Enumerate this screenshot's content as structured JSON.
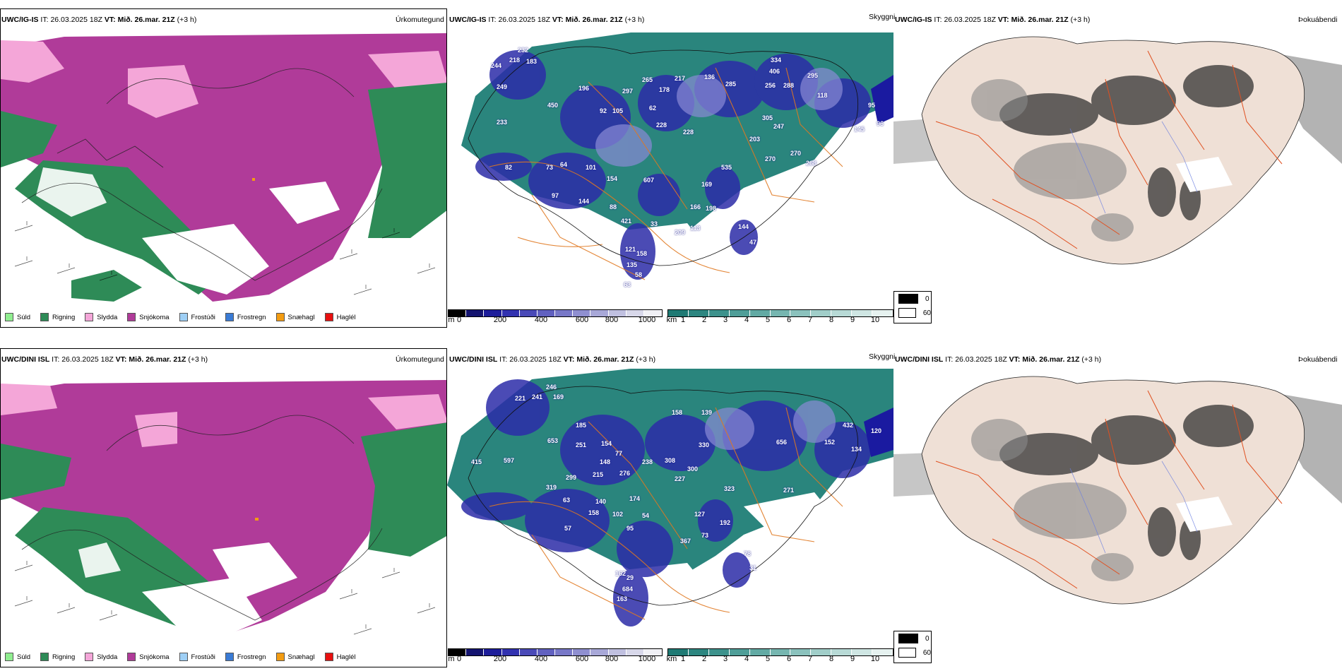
{
  "rows": [
    {
      "model": "UWC/IG-IS",
      "it_label": "IT:",
      "it_value": "26.03.2025 18Z",
      "vt_label": "VT:",
      "vt_value": "Mið. 26.mar. 21Z",
      "lead": "(+3 h)",
      "title_precip": "Úrkomutegund",
      "title_vis": "Skyggni",
      "title_fog": "Þokuábendi",
      "vis_numbers": [
        "232",
        "218",
        "183",
        "244",
        "249",
        "196",
        "450",
        "233",
        "297",
        "265",
        "178",
        "217",
        "136",
        "285",
        "406",
        "334",
        "256",
        "288",
        "295",
        "118",
        "95",
        "92",
        "105",
        "62",
        "228",
        "228",
        "247",
        "203",
        "305",
        "270",
        "145",
        "535",
        "82",
        "64",
        "101",
        "154",
        "607",
        "97",
        "144",
        "88",
        "421",
        "33",
        "169",
        "166",
        "198",
        "144",
        "47",
        "121",
        "158",
        "135",
        "58",
        "63",
        "270",
        "268",
        "209",
        "113",
        "73",
        "96"
      ]
    },
    {
      "model": "UWC/DINI ISL",
      "it_label": "IT:",
      "it_value": "26.03.2025 18Z",
      "vt_label": "VT:",
      "vt_value": "Mið. 26.mar. 21Z",
      "lead": "(+3 h)",
      "title_precip": "Úrkomutegund",
      "title_vis": "Skyggni",
      "title_fog": "Þokuábendi",
      "vis_numbers": [
        "246",
        "221",
        "241",
        "169",
        "185",
        "653",
        "597",
        "415",
        "251",
        "154",
        "77",
        "158",
        "139",
        "656",
        "152",
        "134",
        "120",
        "330",
        "148",
        "238",
        "308",
        "300",
        "227",
        "215",
        "276",
        "174",
        "140",
        "158",
        "102",
        "95",
        "57",
        "54",
        "127",
        "192",
        "323",
        "271",
        "73",
        "367",
        "78",
        "31",
        "63",
        "162",
        "29",
        "684",
        "163",
        "319",
        "299",
        "432"
      ]
    }
  ],
  "precip_legend": [
    {
      "label": "Súld",
      "color": "#90ee90"
    },
    {
      "label": "Rigning",
      "color": "#2e8b57"
    },
    {
      "label": "Slydda",
      "color": "#f4a6d8"
    },
    {
      "label": "Snjókoma",
      "color": "#b03b99"
    },
    {
      "label": "Frostúði",
      "color": "#9ecff5"
    },
    {
      "label": "Frostregn",
      "color": "#3a7bd5"
    },
    {
      "label": "Snæhagl",
      "color": "#f39c12"
    },
    {
      "label": "Haglél",
      "color": "#e81010"
    }
  ],
  "cloud_base_bar": {
    "unit": "m",
    "ticks": [
      "0",
      "200",
      "400",
      "600",
      "800",
      "1000"
    ],
    "colors": [
      "#000000",
      "#141470",
      "#1d1d9a",
      "#3232b0",
      "#4a4ab8",
      "#6161c0",
      "#7878c8",
      "#8f8fd0",
      "#a8a8d8",
      "#c0c0e0",
      "#d8d8ea",
      "#f0f0f5"
    ]
  },
  "visibility_bar": {
    "unit": "km",
    "ticks": [
      "1",
      "2",
      "3",
      "4",
      "5",
      "6",
      "7",
      "8",
      "9",
      "10"
    ],
    "colors": [
      "#1f7a74",
      "#2d8680",
      "#3d928c",
      "#4f9e98",
      "#62aaa4",
      "#76b6b0",
      "#8bc2bd",
      "#a1cec9",
      "#b8dad6",
      "#cfe6e3",
      "#e6f2f0"
    ]
  },
  "fog_legend": [
    {
      "label": "0",
      "color": "#000000"
    },
    {
      "label": "60",
      "color": "#ffffff"
    }
  ]
}
